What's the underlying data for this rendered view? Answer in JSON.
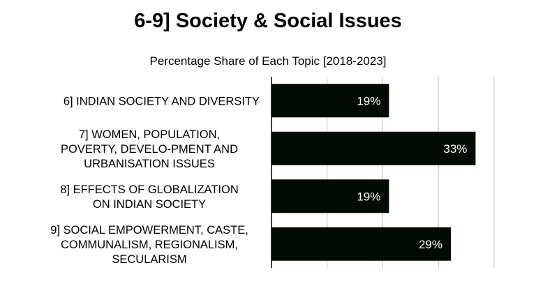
{
  "chart_data": {
    "type": "bar",
    "orientation": "horizontal",
    "title": "6-9] Society & Social Issues",
    "subtitle": "Percentage Share of Each Topic [2018-2023]",
    "categories": [
      [
        "6] INDIAN SOCIETY AND DIVERSITY"
      ],
      [
        "7] WOMEN, POPULATION,",
        "POVERTY, DEVELO-PMENT AND",
        "URBANISATION ISSUES"
      ],
      [
        "8] EFFECTS OF GLOBALIZATION",
        "ON INDIAN SOCIETY"
      ],
      [
        "9] SOCIAL EMPOWERMENT, CASTE,",
        "COMMUNALISM, REGIONALISM,",
        "SECULARISM"
      ]
    ],
    "values": [
      19,
      33,
      19,
      29
    ],
    "data_labels": [
      "19%",
      "33%",
      "19%",
      "29%"
    ],
    "xlim": [
      0,
      36
    ],
    "grid": true,
    "bar_color": "#020a04",
    "label_color": "#ffffff",
    "grid_color": "#c8c8c8"
  }
}
